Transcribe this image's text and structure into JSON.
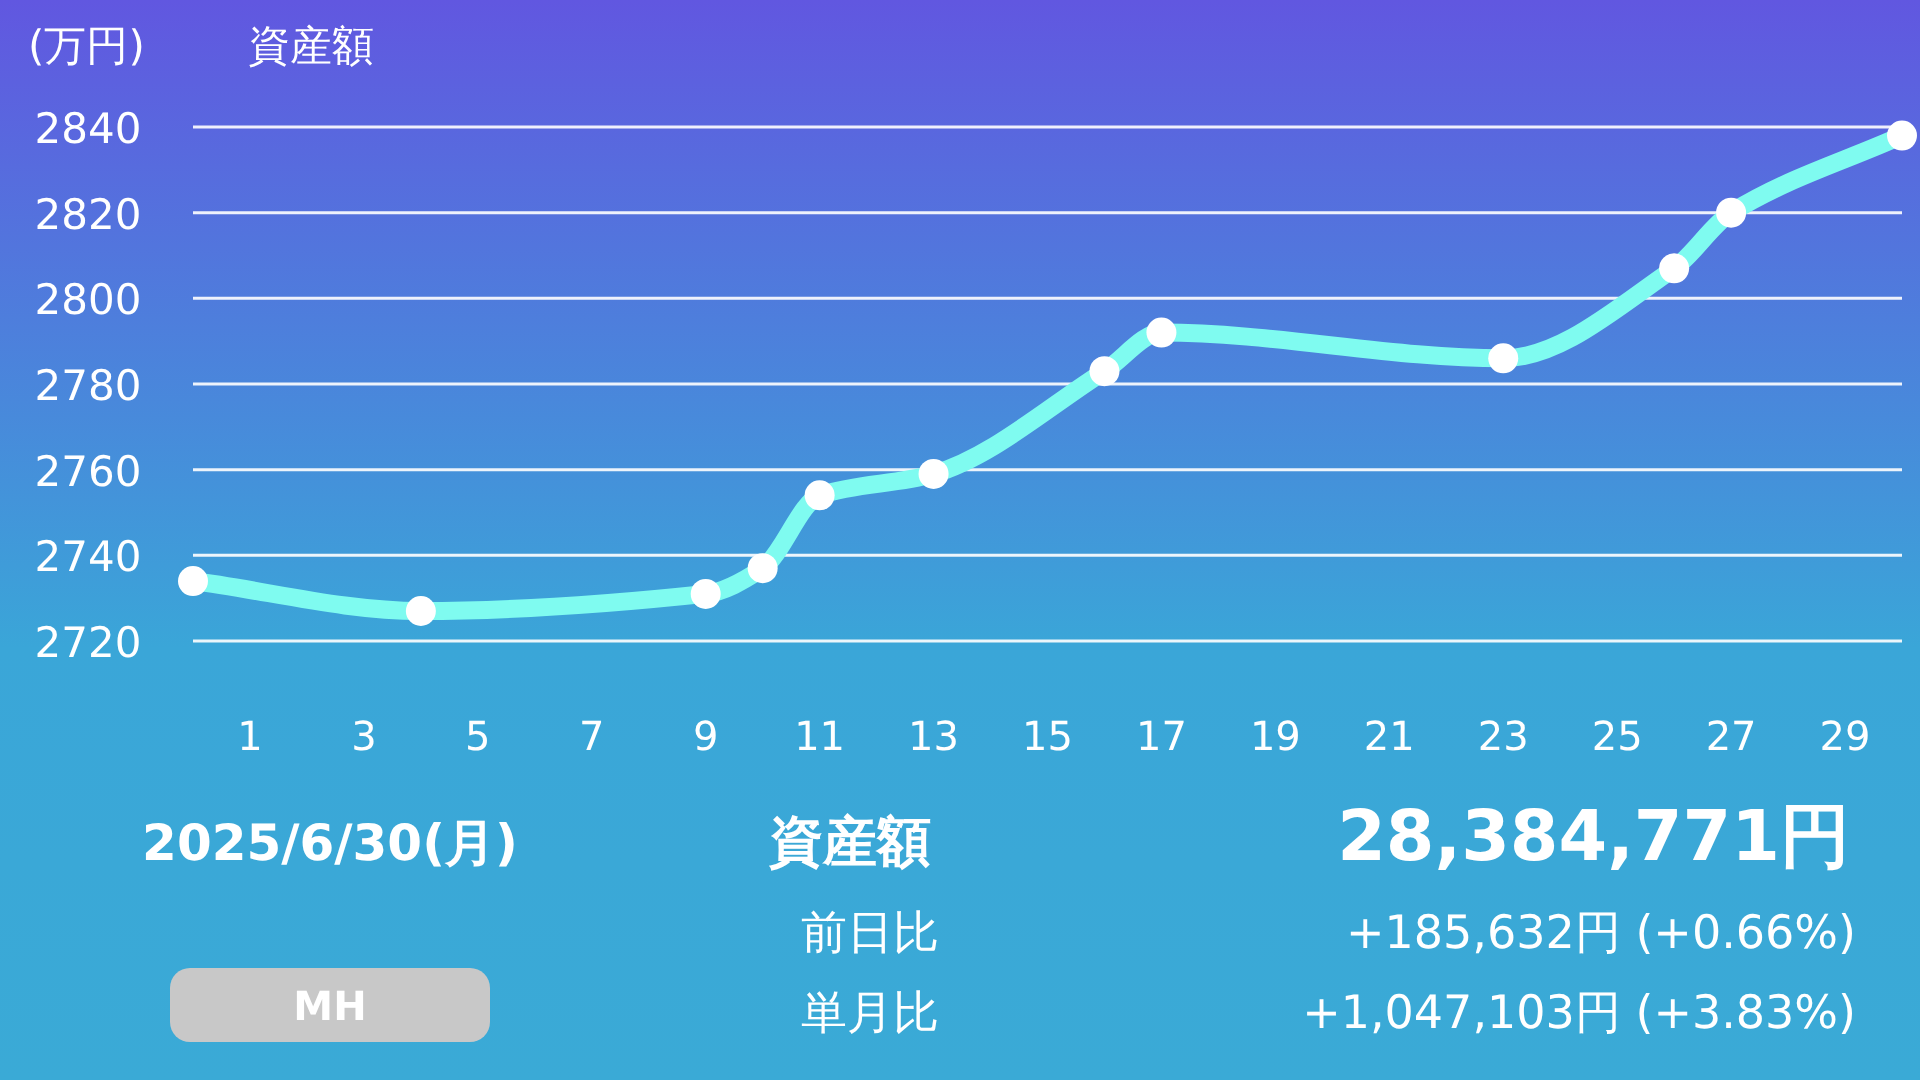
{
  "chart_data": {
    "type": "line",
    "title": "資産額",
    "ylabel": "(万円)",
    "x": [
      0,
      4,
      9,
      10,
      11,
      13,
      16,
      17,
      23,
      26,
      27,
      30
    ],
    "series": [
      {
        "color": "#7ffbf0",
        "values": [
          2734,
          2727,
          2731,
          2737,
          2754,
          2759,
          2783,
          2792,
          2786,
          2807,
          2820,
          2838
        ]
      }
    ],
    "xlim": [
      0,
      30
    ],
    "xticks": [
      1,
      3,
      5,
      7,
      9,
      11,
      13,
      15,
      17,
      19,
      21,
      23,
      25,
      27,
      29
    ],
    "ylim": [
      2720,
      2840
    ],
    "yticks": [
      2720,
      2740,
      2760,
      2780,
      2800,
      2820,
      2840
    ],
    "grid": "y",
    "marker": "circle",
    "annotations": [
      "2025/6/30(月)",
      "資産額",
      "28,384,771円",
      "前日比",
      "+185,632円 (+0.66%)",
      "単月比",
      "+1,047,103円 (+3.83%)",
      "MH"
    ]
  }
}
